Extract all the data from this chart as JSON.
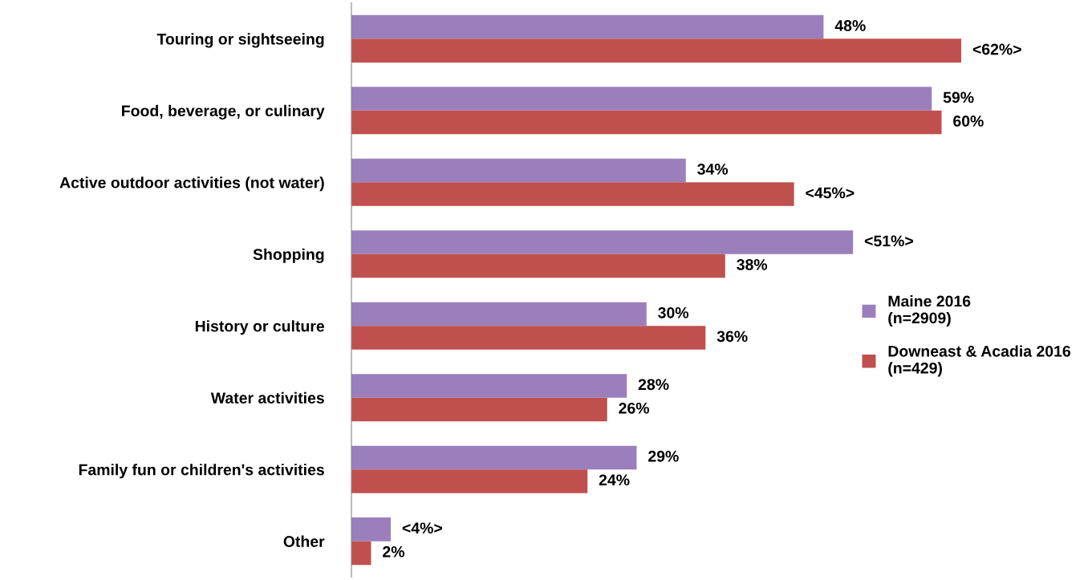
{
  "chart_data": {
    "type": "bar",
    "orientation": "horizontal",
    "categories": [
      "Touring or sightseeing",
      "Food, beverage, or culinary",
      "Active outdoor activities (not water)",
      "Shopping",
      "History or culture",
      "Water activities",
      "Family fun or children's activities",
      "Other"
    ],
    "series": [
      {
        "name": "Maine 2016\n(n=2909)",
        "color": "#9b7fbc",
        "values": [
          48,
          59,
          34,
          51,
          30,
          28,
          29,
          4
        ],
        "value_labels": [
          "48%",
          "59%",
          "34%",
          "<51%>",
          "30%",
          "28%",
          "29%",
          "<4%>"
        ]
      },
      {
        "name": "Downeast & Acadia 2016\n(n=429)",
        "color": "#c0504d",
        "values": [
          62,
          60,
          45,
          38,
          36,
          26,
          24,
          2
        ],
        "value_labels": [
          "<62%>",
          "60%",
          "<45%>",
          "38%",
          "36%",
          "26%",
          "24%",
          "2%"
        ]
      }
    ],
    "legend": "right",
    "grid": false,
    "tick_labels": "y"
  }
}
